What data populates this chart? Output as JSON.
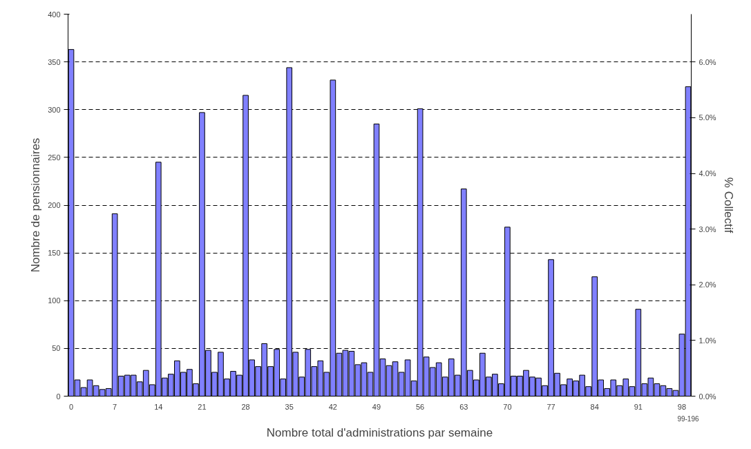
{
  "chart_data": {
    "type": "bar",
    "xlabel": "Nombre total d'administrations par semaine",
    "ylabel": "Nombre de pensionnaires",
    "y2label": "% Collectif",
    "categories": [
      "0",
      null,
      null,
      null,
      null,
      null,
      null,
      "7",
      null,
      null,
      null,
      null,
      null,
      null,
      "14",
      null,
      null,
      null,
      null,
      null,
      null,
      "21",
      null,
      null,
      null,
      null,
      null,
      null,
      "28",
      null,
      null,
      null,
      null,
      null,
      null,
      "35",
      null,
      null,
      null,
      null,
      null,
      null,
      "42",
      null,
      null,
      null,
      null,
      null,
      null,
      "49",
      null,
      null,
      null,
      null,
      null,
      null,
      "56",
      null,
      null,
      null,
      null,
      null,
      null,
      "63",
      null,
      null,
      null,
      null,
      null,
      null,
      "70",
      null,
      null,
      null,
      null,
      null,
      null,
      "77",
      null,
      null,
      null,
      null,
      null,
      null,
      "84",
      null,
      null,
      null,
      null,
      null,
      null,
      "91",
      null,
      null,
      null,
      null,
      null,
      null,
      "98",
      null
    ],
    "annotations": [
      "99-196"
    ],
    "values": [
      363,
      17,
      9,
      17,
      11,
      7,
      8,
      191,
      21,
      22,
      22,
      15,
      27,
      12,
      245,
      19,
      23,
      37,
      25,
      28,
      13,
      297,
      48,
      25,
      46,
      18,
      26,
      22,
      315,
      38,
      31,
      55,
      31,
      49,
      18,
      344,
      46,
      20,
      49,
      31,
      37,
      25,
      331,
      45,
      48,
      47,
      33,
      35,
      25,
      285,
      39,
      32,
      36,
      25,
      38,
      16,
      301,
      41,
      30,
      35,
      20,
      39,
      22,
      217,
      27,
      17,
      45,
      20,
      23,
      13,
      177,
      21,
      21,
      27,
      20,
      19,
      11,
      143,
      24,
      12,
      18,
      16,
      22,
      10,
      125,
      17,
      8,
      17,
      11,
      18,
      10,
      91,
      13,
      19,
      13,
      11,
      8,
      6,
      65,
      324
    ],
    "color": "#8080ff",
    "ylim": [
      0,
      400
    ],
    "yticks": [
      0,
      50,
      100,
      150,
      200,
      250,
      300,
      350,
      400
    ],
    "y2lim": [
      0,
      6.86
    ],
    "y2ticks": [
      {
        "value": 0,
        "label": "0.0%"
      },
      {
        "value": 1,
        "label": "1.0%"
      },
      {
        "value": 2,
        "label": "2.0%"
      },
      {
        "value": 3,
        "label": "3.0%"
      },
      {
        "value": 4,
        "label": "4.0%"
      },
      {
        "value": 5,
        "label": "5.0%"
      },
      {
        "value": 6,
        "label": "6.0%"
      }
    ],
    "grid": "y"
  }
}
